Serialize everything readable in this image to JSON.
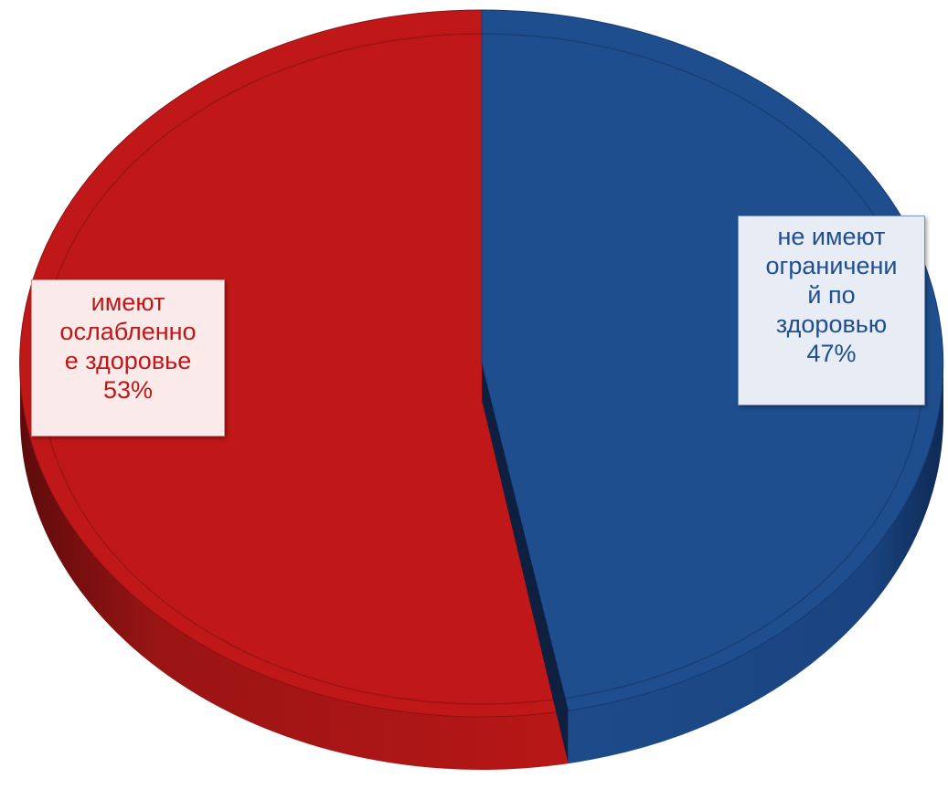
{
  "chart_data": {
    "type": "pie",
    "style": "3d",
    "categories": [
      "имеют ослабленное здоровье",
      "не имеют ограничений по здоровью"
    ],
    "values": [
      53,
      47
    ],
    "colors": [
      "#c01818",
      "#1f4e8f"
    ],
    "labels": [
      {
        "lines": [
          "имеют",
          "ослабленно",
          "е здоровье",
          "53%"
        ],
        "color": "#c01818"
      },
      {
        "lines": [
          "не имеют",
          "ограничени",
          "й по",
          "здоровью",
          "47%"
        ],
        "color": "#1f4e8f"
      }
    ]
  }
}
